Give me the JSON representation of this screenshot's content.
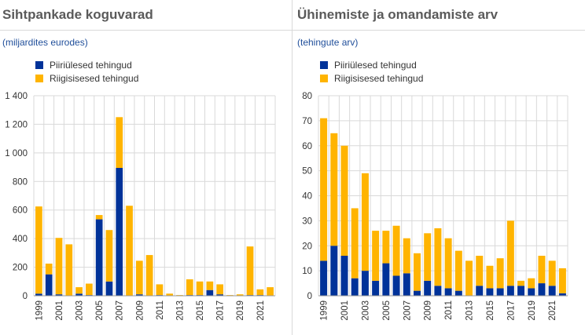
{
  "colors": {
    "cross_border": "#003299",
    "domestic": "#ffb400",
    "grid": "#d9d9d9",
    "axis": "#999999"
  },
  "chart_data": [
    {
      "type": "bar",
      "stacked": true,
      "title": "Sihtpankade koguvarad",
      "subtitle": "(miljardites eurodes)",
      "xlabel": "",
      "ylabel": "",
      "ylim": [
        0,
        1400
      ],
      "yticks": [
        0,
        200,
        400,
        600,
        800,
        1000,
        1200,
        1400
      ],
      "ytick_labels": [
        "0",
        "200",
        "400",
        "600",
        "800",
        "1 000",
        "1 200",
        "1 400"
      ],
      "categories": [
        "1999",
        "2000",
        "2001",
        "2002",
        "2003",
        "2004",
        "2005",
        "2006",
        "2007",
        "2008",
        "2009",
        "2010",
        "2011",
        "2012",
        "2013",
        "2014",
        "2015",
        "2016",
        "2017",
        "2018",
        "2019",
        "2020",
        "2021",
        "2022"
      ],
      "xtick_labels": [
        "1999",
        "2001",
        "2003",
        "2005",
        "2007",
        "2009",
        "2011",
        "2013",
        "2015",
        "2017",
        "2019",
        "2021"
      ],
      "grid": true,
      "legend_position": "top-left",
      "series": [
        {
          "name": "Piiriülesed tehingud",
          "color": "#003299",
          "values": [
            15,
            150,
            10,
            0,
            15,
            5,
            535,
            100,
            895,
            0,
            10,
            0,
            5,
            0,
            0,
            5,
            5,
            40,
            10,
            0,
            0,
            5,
            5,
            0
          ]
        },
        {
          "name": "Riigisisesed tehingud",
          "color": "#ffb400",
          "values": [
            610,
            75,
            395,
            360,
            45,
            80,
            30,
            360,
            355,
            630,
            235,
            285,
            75,
            15,
            5,
            110,
            95,
            60,
            70,
            5,
            10,
            340,
            40,
            60
          ]
        }
      ]
    },
    {
      "type": "bar",
      "stacked": true,
      "title": "Ühinemiste ja omandamiste arv",
      "subtitle": "(tehingute arv)",
      "xlabel": "",
      "ylabel": "",
      "ylim": [
        0,
        80
      ],
      "yticks": [
        0,
        10,
        20,
        30,
        40,
        50,
        60,
        70,
        80
      ],
      "ytick_labels": [
        "0",
        "10",
        "20",
        "30",
        "40",
        "50",
        "60",
        "70",
        "80"
      ],
      "categories": [
        "1999",
        "2000",
        "2001",
        "2002",
        "2003",
        "2004",
        "2005",
        "2006",
        "2007",
        "2008",
        "2009",
        "2010",
        "2011",
        "2012",
        "2013",
        "2014",
        "2015",
        "2016",
        "2017",
        "2018",
        "2019",
        "2020",
        "2021",
        "2022"
      ],
      "xtick_labels": [
        "1999",
        "2001",
        "2003",
        "2005",
        "2007",
        "2009",
        "2011",
        "2013",
        "2015",
        "2017",
        "2019",
        "2021"
      ],
      "grid": true,
      "legend_position": "top-left",
      "series": [
        {
          "name": "Piiriülesed tehingud",
          "color": "#003299",
          "values": [
            14,
            20,
            16,
            7,
            10,
            6,
            13,
            8,
            9,
            2,
            6,
            4,
            3,
            2,
            0,
            4,
            3,
            3,
            4,
            4,
            3,
            5,
            4,
            1
          ]
        },
        {
          "name": "Riigisisesed tehingud",
          "color": "#ffb400",
          "values": [
            57,
            45,
            44,
            28,
            39,
            20,
            13,
            20,
            14,
            15,
            19,
            23,
            20,
            16,
            14,
            12,
            9,
            12,
            26,
            2,
            4,
            11,
            10,
            10
          ]
        }
      ]
    }
  ]
}
